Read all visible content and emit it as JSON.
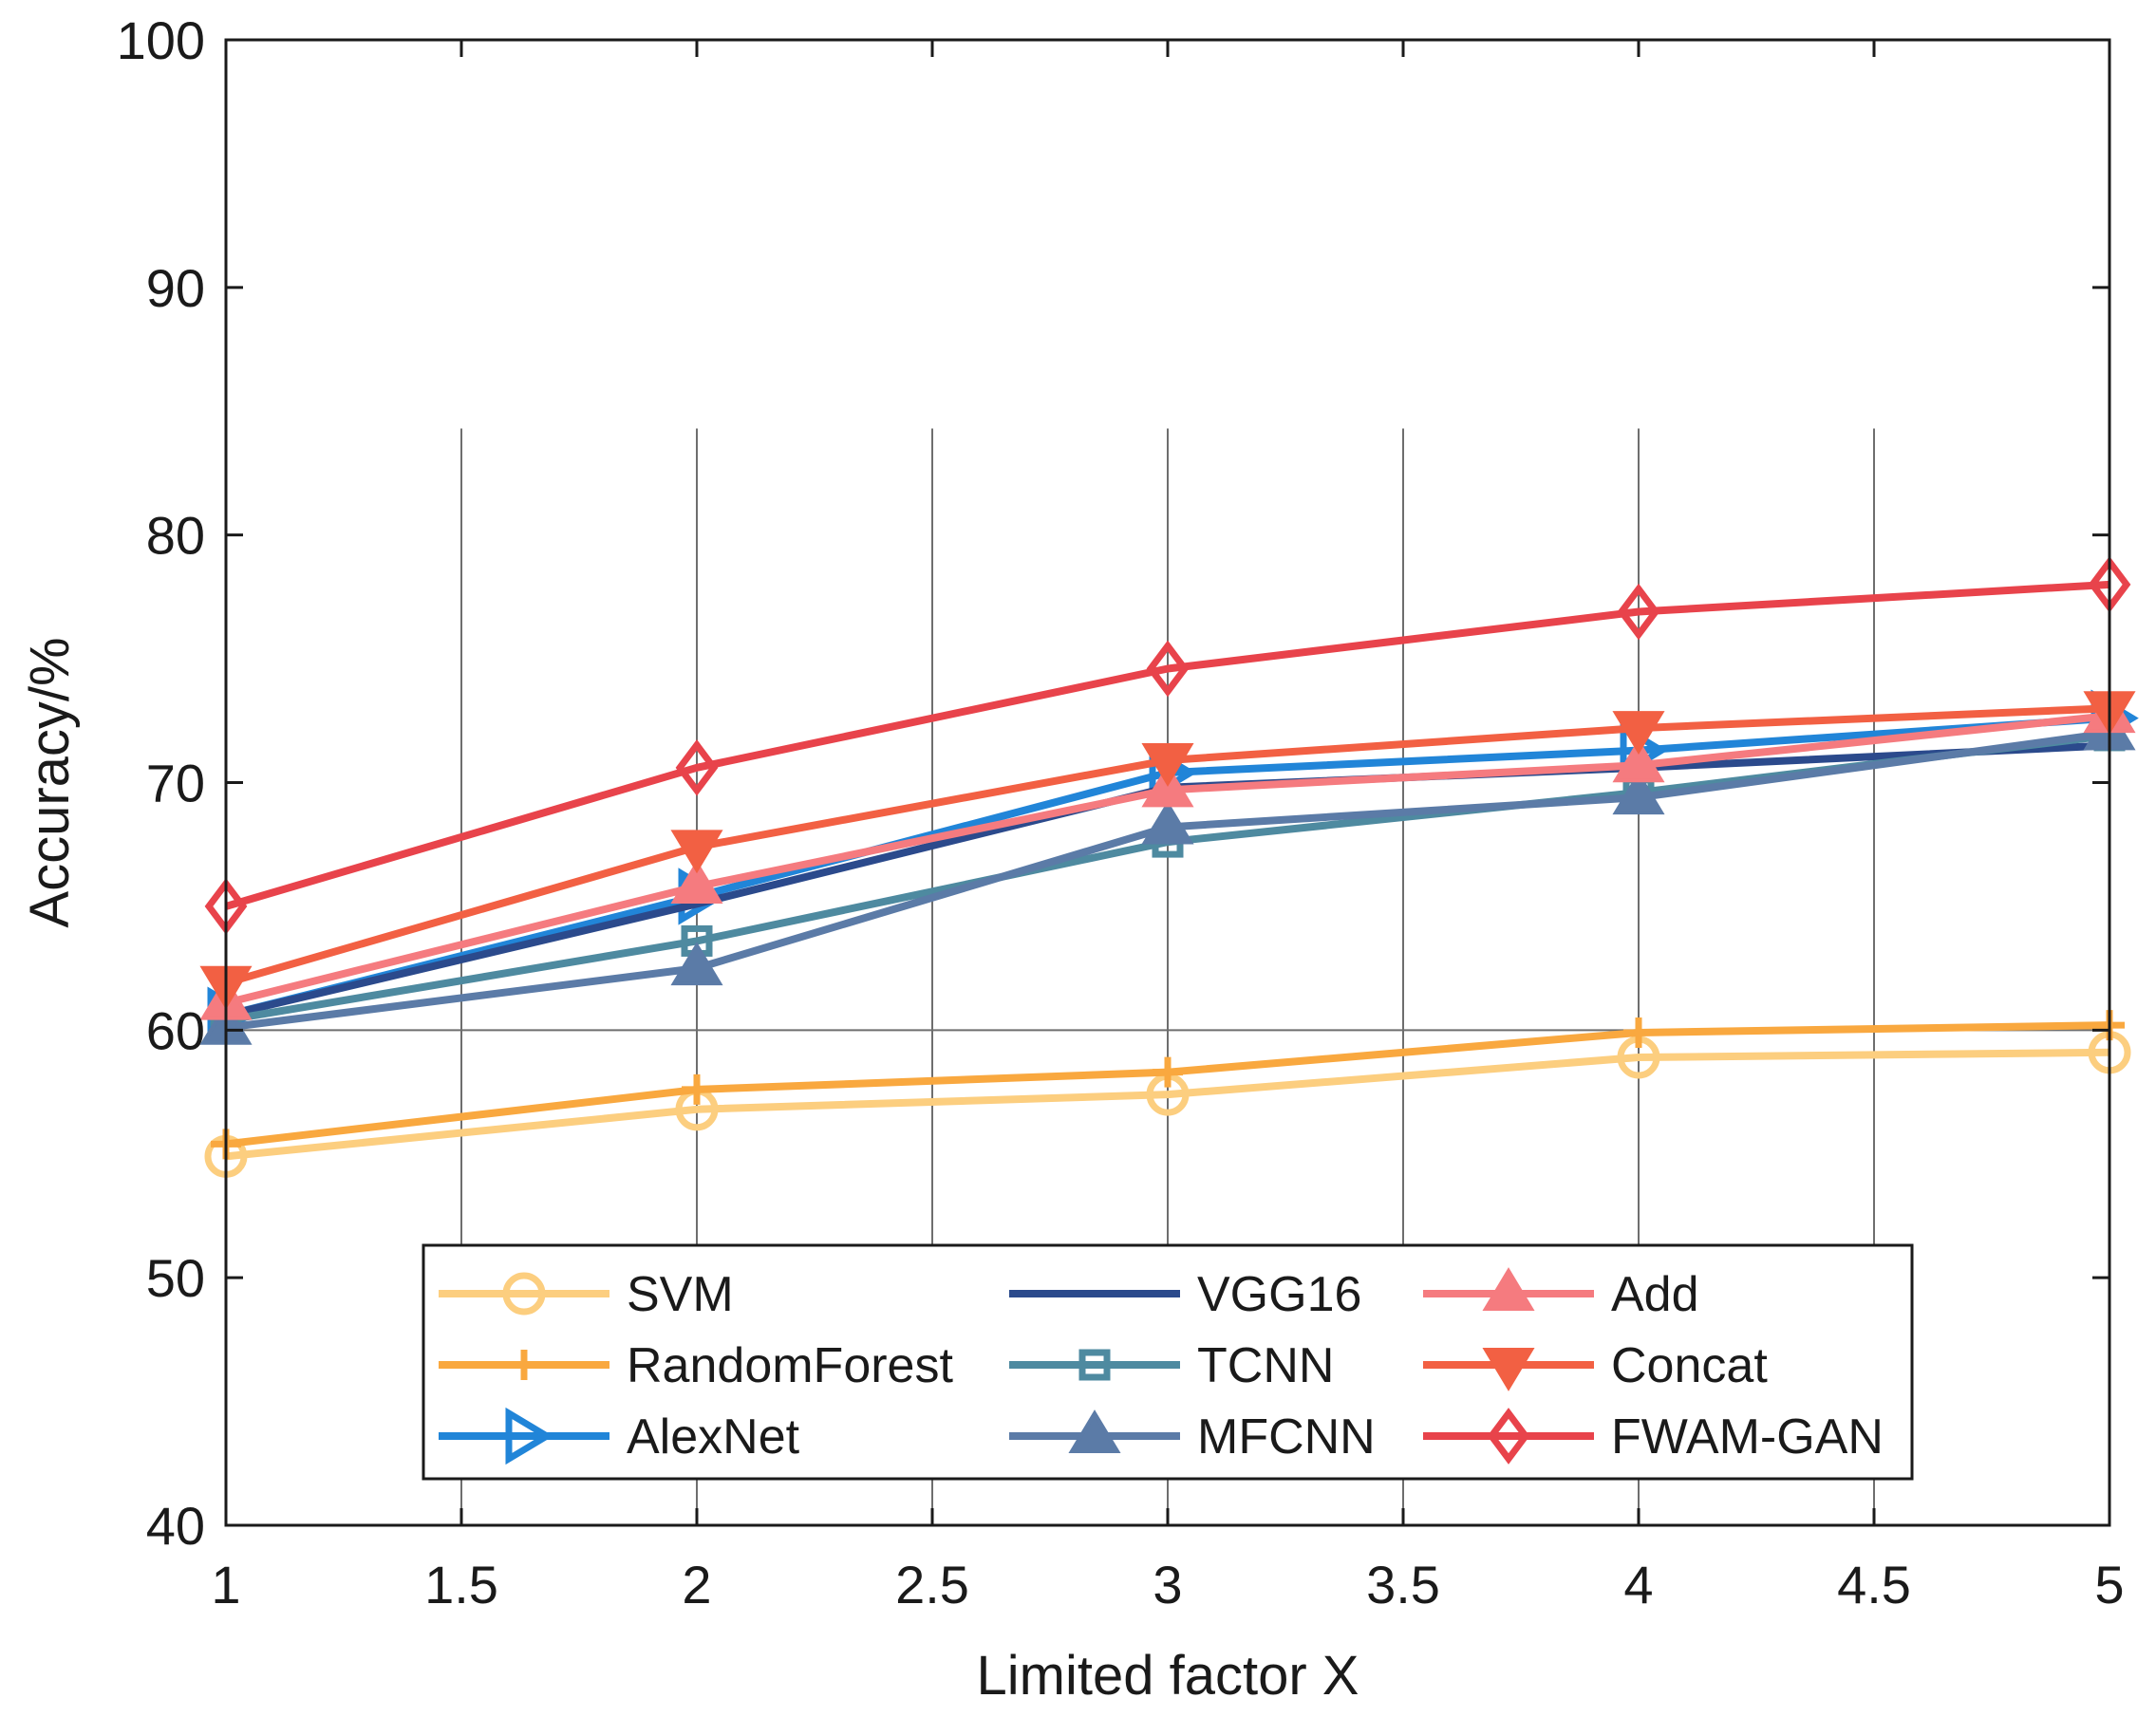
{
  "chart_data": {
    "type": "line",
    "xlabel": "Limited factor X",
    "ylabel": "Accuracy/%",
    "xlim": [
      1,
      5
    ],
    "ylim": [
      40,
      100
    ],
    "xticks": [
      1,
      1.5,
      2,
      2.5,
      3,
      3.5,
      4,
      4.5,
      5
    ],
    "xtick_labels": [
      "1",
      "1.5",
      "2",
      "2.5",
      "3",
      "3.5",
      "4",
      "4.5",
      "5"
    ],
    "yticks": [
      40,
      50,
      60,
      70,
      80,
      90,
      100
    ],
    "ytick_labels": [
      "40",
      "50",
      "60",
      "70",
      "80",
      "90",
      "100"
    ],
    "x": [
      1,
      2,
      3,
      4,
      5
    ],
    "grid": "partial",
    "legend_position": "bottom-center",
    "series": [
      {
        "name": "SVM",
        "values": [
          54.9,
          56.8,
          57.4,
          58.9,
          59.1
        ],
        "color": "#FCCE7F",
        "marker": "circle"
      },
      {
        "name": "RandomForest",
        "values": [
          55.4,
          57.6,
          58.3,
          59.9,
          60.2
        ],
        "color": "#F9A83F",
        "marker": "plus"
      },
      {
        "name": "AlexNet",
        "values": [
          60.6,
          65.4,
          70.4,
          71.3,
          72.6
        ],
        "color": "#2185D8",
        "marker": "triangle-right"
      },
      {
        "name": "VGG16",
        "values": [
          60.6,
          65.1,
          69.8,
          70.6,
          71.5
        ],
        "color": "#2B4A8C",
        "marker": "none"
      },
      {
        "name": "TCNN",
        "values": [
          60.4,
          63.6,
          67.6,
          69.6,
          71.9
        ],
        "color": "#4E8AA0",
        "marker": "square"
      },
      {
        "name": "MFCNN",
        "values": [
          60.1,
          62.5,
          68.2,
          69.4,
          72.0
        ],
        "color": "#5B7BA7",
        "marker": "triangle-up"
      },
      {
        "name": "Add",
        "values": [
          61.1,
          65.8,
          69.7,
          70.7,
          72.7
        ],
        "color": "#F57B7F",
        "marker": "triangle-up"
      },
      {
        "name": "Concat",
        "values": [
          61.9,
          67.4,
          70.9,
          72.2,
          73.0
        ],
        "color": "#F26043",
        "marker": "triangle-down"
      },
      {
        "name": "FWAM-GAN",
        "values": [
          65.0,
          70.6,
          74.6,
          76.9,
          78.0
        ],
        "color": "#E8434B",
        "marker": "diamond"
      }
    ]
  }
}
